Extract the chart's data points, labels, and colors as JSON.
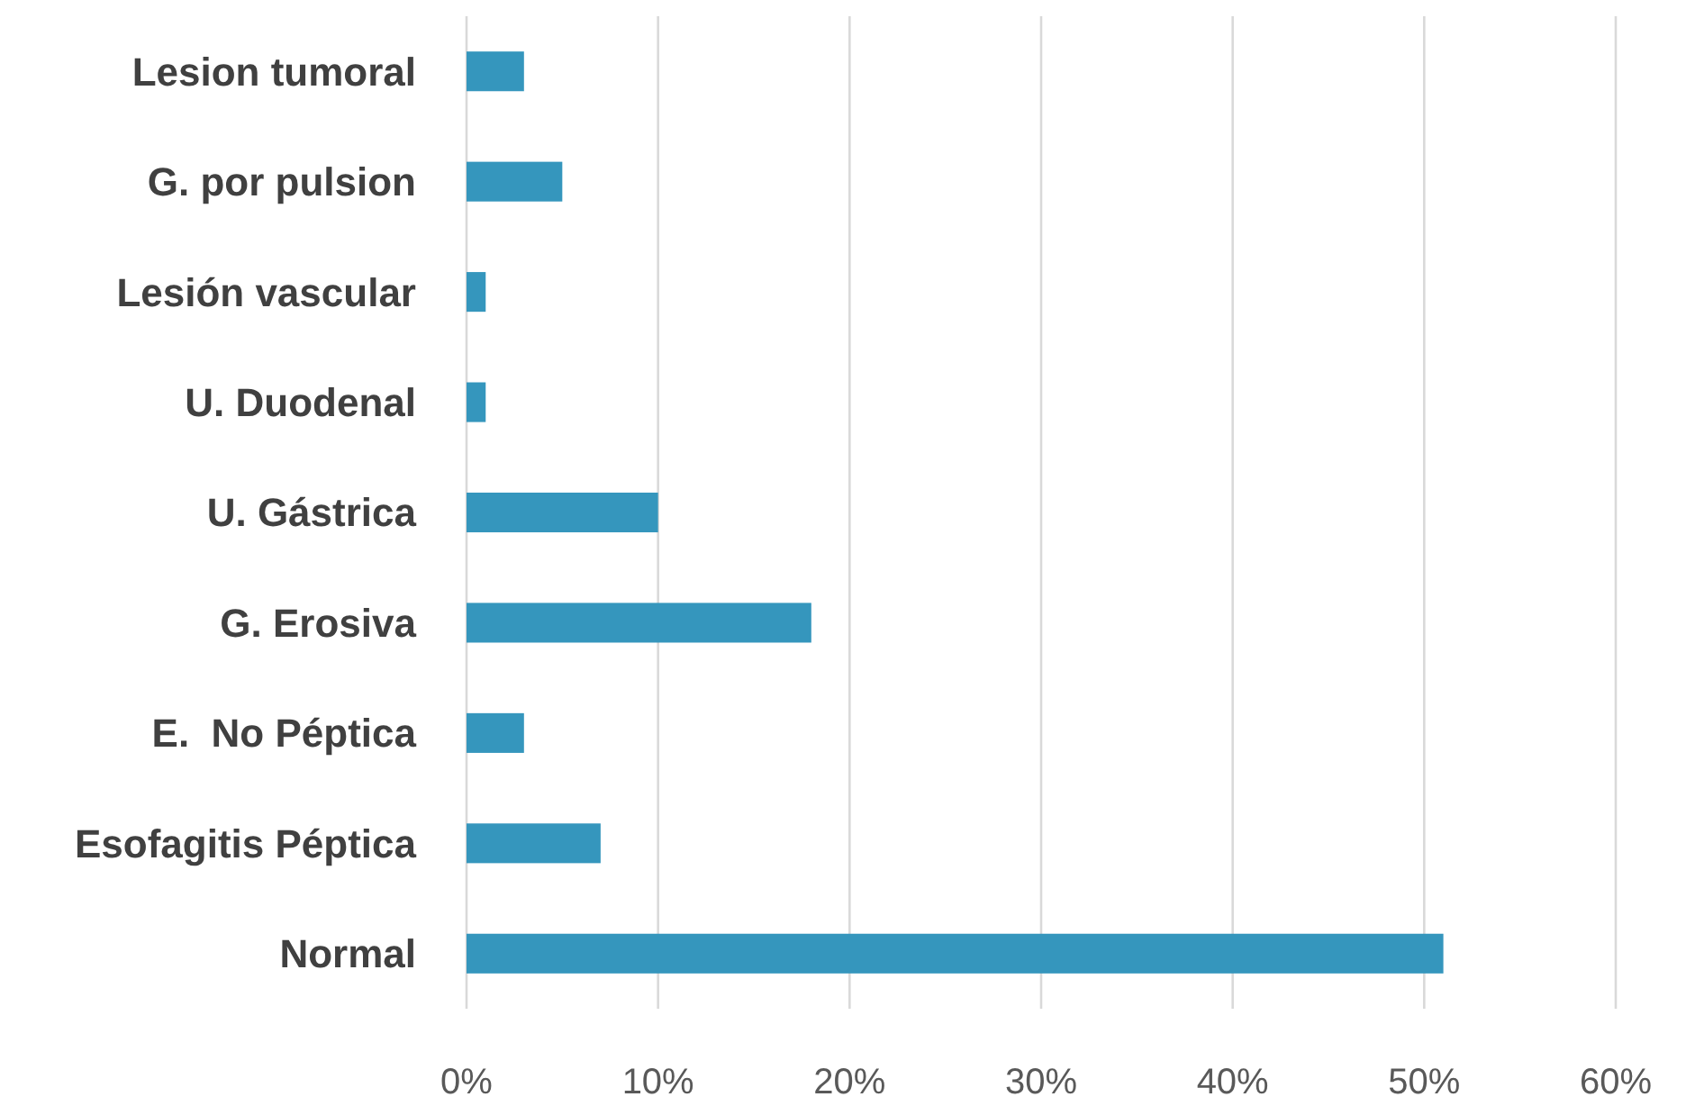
{
  "chart_data": {
    "type": "bar",
    "orientation": "horizontal",
    "categories": [
      "Lesion tumoral",
      "G. por pulsion",
      "Lesión vascular",
      "U. Duodenal",
      "U. Gástrica",
      "G. Erosiva",
      "E.  No Péptica",
      "Esofagitis Péptica",
      "Normal"
    ],
    "values": [
      3,
      5,
      1,
      1,
      10,
      18,
      3,
      7,
      51
    ],
    "color": "#3596bd",
    "xlim": [
      0,
      60
    ],
    "xticks": [
      {
        "value": 0,
        "label": "0%"
      },
      {
        "value": 10,
        "label": "10%"
      },
      {
        "value": 20,
        "label": "20%"
      },
      {
        "value": 30,
        "label": "30%"
      },
      {
        "value": 40,
        "label": "40%"
      },
      {
        "value": 50,
        "label": "50%"
      },
      {
        "value": 60,
        "label": "60%"
      }
    ],
    "grid": "x"
  }
}
